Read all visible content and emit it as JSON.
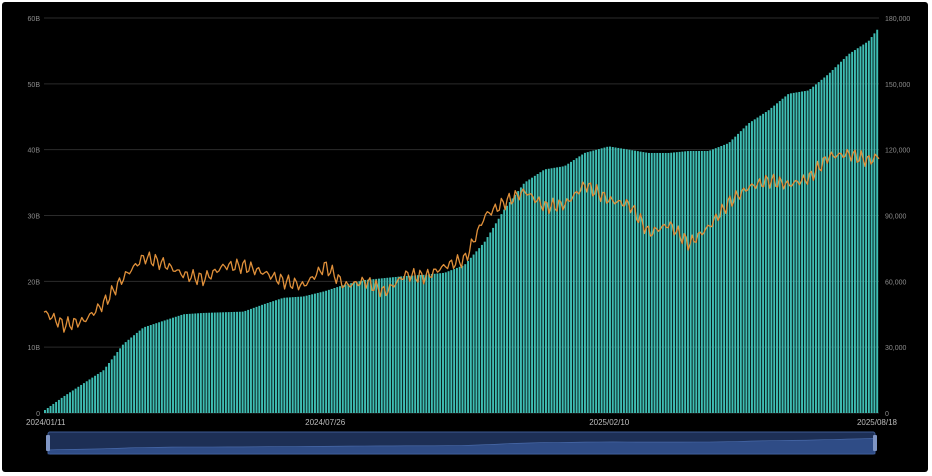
{
  "chart_data": {
    "type": "bar+line",
    "x_start": "2024/01/11",
    "x_end": "2025/08/18",
    "x_tick_labels": [
      "2024/01/11",
      "2024/07/26",
      "2025/02/10",
      "2025/08/18"
    ],
    "y_left": {
      "ticks": [
        0,
        10,
        20,
        30,
        40,
        50,
        60
      ],
      "tick_labels": [
        "0",
        "10B",
        "20B",
        "30B",
        "40B",
        "50B",
        "60B"
      ],
      "ylim": [
        0,
        60
      ]
    },
    "y_right": {
      "ticks": [
        0,
        30000,
        60000,
        90000,
        120000,
        150000,
        180000
      ],
      "tick_labels": [
        "0",
        "30,000",
        "60,000",
        "90,000",
        "120,000",
        "150,000",
        "180,000"
      ],
      "ylim": [
        0,
        180000
      ]
    },
    "grid": true,
    "series": [
      {
        "kind": "bar",
        "axis": "left",
        "color": "#3fbdb3",
        "points": [
          [
            "2024/01/11",
            0.3
          ],
          [
            "2024/01/25",
            2.5
          ],
          [
            "2024/02/08",
            4.5
          ],
          [
            "2024/02/22",
            6.5
          ],
          [
            "2024/03/07",
            10.5
          ],
          [
            "2024/03/21",
            13.0
          ],
          [
            "2024/04/04",
            14.0
          ],
          [
            "2024/04/18",
            15.0
          ],
          [
            "2024/05/02",
            15.2
          ],
          [
            "2024/05/16",
            15.3
          ],
          [
            "2024/05/30",
            15.4
          ],
          [
            "2024/06/13",
            16.5
          ],
          [
            "2024/06/27",
            17.5
          ],
          [
            "2024/07/11",
            17.7
          ],
          [
            "2024/07/26",
            18.5
          ],
          [
            "2024/08/09",
            19.5
          ],
          [
            "2024/08/23",
            20.2
          ],
          [
            "2024/09/06",
            20.5
          ],
          [
            "2024/09/20",
            20.8
          ],
          [
            "2024/10/04",
            21.0
          ],
          [
            "2024/10/18",
            21.3
          ],
          [
            "2024/11/01",
            22.5
          ],
          [
            "2024/11/15",
            26.0
          ],
          [
            "2024/11/29",
            31.0
          ],
          [
            "2024/12/13",
            35.0
          ],
          [
            "2024/12/27",
            37.0
          ],
          [
            "2025/01/10",
            37.5
          ],
          [
            "2025/01/24",
            39.5
          ],
          [
            "2025/02/10",
            40.5
          ],
          [
            "2025/02/24",
            40.0
          ],
          [
            "2025/03/10",
            39.5
          ],
          [
            "2025/03/24",
            39.5
          ],
          [
            "2025/04/07",
            39.8
          ],
          [
            "2025/04/21",
            39.8
          ],
          [
            "2025/05/05",
            41.0
          ],
          [
            "2025/05/19",
            44.0
          ],
          [
            "2025/06/02",
            46.0
          ],
          [
            "2025/06/16",
            48.5
          ],
          [
            "2025/06/30",
            49.0
          ],
          [
            "2025/07/14",
            51.5
          ],
          [
            "2025/07/28",
            54.5
          ],
          [
            "2025/08/11",
            56.5
          ],
          [
            "2025/08/18",
            58.5
          ]
        ]
      },
      {
        "kind": "line",
        "axis": "right",
        "color": "#e0903a",
        "points": [
          [
            "2024/01/11",
            46000
          ],
          [
            "2024/01/25",
            40000
          ],
          [
            "2024/02/08",
            42000
          ],
          [
            "2024/02/22",
            50000
          ],
          [
            "2024/03/07",
            62000
          ],
          [
            "2024/03/21",
            71000
          ],
          [
            "2024/04/04",
            68000
          ],
          [
            "2024/04/18",
            63000
          ],
          [
            "2024/05/02",
            61000
          ],
          [
            "2024/05/16",
            67000
          ],
          [
            "2024/05/30",
            67000
          ],
          [
            "2024/06/13",
            64000
          ],
          [
            "2024/06/27",
            60000
          ],
          [
            "2024/07/11",
            58000
          ],
          [
            "2024/07/26",
            67000
          ],
          [
            "2024/08/09",
            58000
          ],
          [
            "2024/08/23",
            60000
          ],
          [
            "2024/09/06",
            55000
          ],
          [
            "2024/09/20",
            63000
          ],
          [
            "2024/10/04",
            62000
          ],
          [
            "2024/10/18",
            67000
          ],
          [
            "2024/11/01",
            70000
          ],
          [
            "2024/11/15",
            90000
          ],
          [
            "2024/11/29",
            96000
          ],
          [
            "2024/12/13",
            101000
          ],
          [
            "2024/12/27",
            94000
          ],
          [
            "2025/01/10",
            95000
          ],
          [
            "2025/01/24",
            104000
          ],
          [
            "2025/02/10",
            97000
          ],
          [
            "2025/02/24",
            95000
          ],
          [
            "2025/03/10",
            82000
          ],
          [
            "2025/03/24",
            86000
          ],
          [
            "2025/04/07",
            77000
          ],
          [
            "2025/04/21",
            85000
          ],
          [
            "2025/05/05",
            96000
          ],
          [
            "2025/05/19",
            103000
          ],
          [
            "2025/06/02",
            106000
          ],
          [
            "2025/06/16",
            104000
          ],
          [
            "2025/06/30",
            107000
          ],
          [
            "2025/07/14",
            117000
          ],
          [
            "2025/07/28",
            118000
          ],
          [
            "2025/08/11",
            115000
          ],
          [
            "2025/08/18",
            117000
          ]
        ]
      }
    ],
    "zoom_slider": {
      "range_start": 0,
      "range_end": 1
    }
  }
}
